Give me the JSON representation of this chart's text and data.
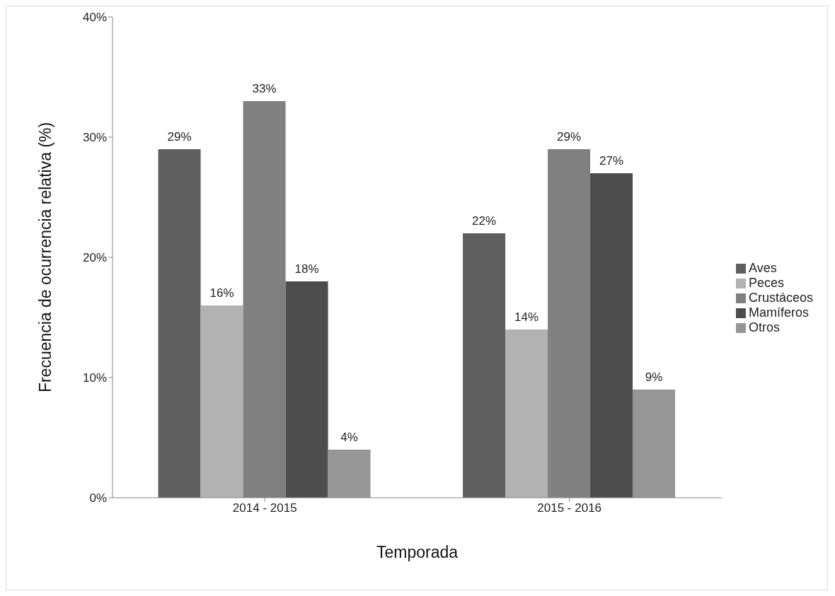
{
  "chart_data": {
    "type": "bar",
    "xlabel": "Temporada",
    "ylabel": "Frecuencia de ocurrencia relativa (%)",
    "categories": [
      "2014 - 2015",
      "2015 - 2016"
    ],
    "series": [
      {
        "name": "Aves",
        "color": "#5f5f5f",
        "values": [
          29,
          22
        ],
        "value_labels": [
          "29%",
          "22%"
        ]
      },
      {
        "name": "Peces",
        "color": "#b2b2b2",
        "values": [
          16,
          14
        ],
        "value_labels": [
          "16%",
          "14%"
        ]
      },
      {
        "name": "Crustáceos",
        "color": "#808080",
        "values": [
          33,
          29
        ],
        "value_labels": [
          "33%",
          "29%"
        ]
      },
      {
        "name": "Mamíferos",
        "color": "#4d4d4d",
        "values": [
          18,
          27
        ],
        "value_labels": [
          "18%",
          "27%"
        ]
      },
      {
        "name": "Otros",
        "color": "#969696",
        "values": [
          4,
          9
        ],
        "value_labels": [
          "4%",
          "9%"
        ]
      }
    ],
    "ylim": [
      0,
      40
    ],
    "yticks": [
      {
        "value": 0,
        "label": "0%"
      },
      {
        "value": 10,
        "label": "10%"
      },
      {
        "value": 20,
        "label": "20%"
      },
      {
        "value": 30,
        "label": "30%"
      },
      {
        "value": 40,
        "label": "40%"
      }
    ],
    "grid": false,
    "legend": "right"
  }
}
